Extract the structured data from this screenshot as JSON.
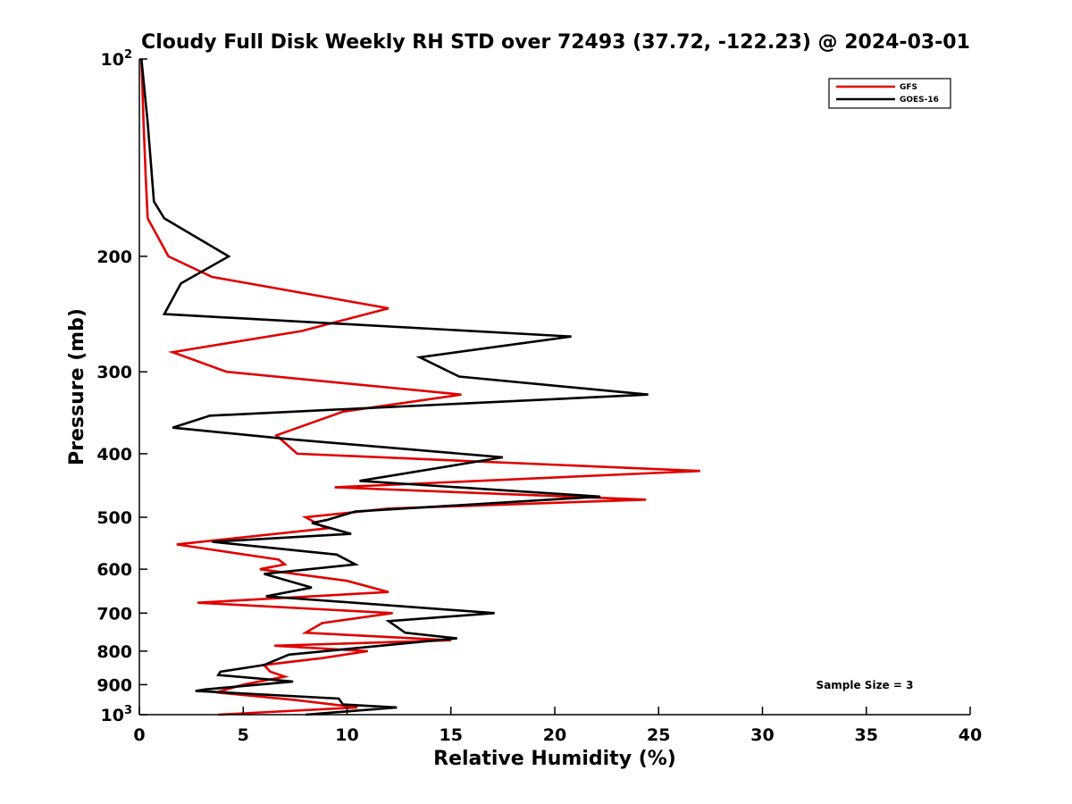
{
  "chart_data": {
    "type": "line",
    "title": "Cloudy Full Disk Weekly RH STD over 72493 (37.72, -122.23) @ 2024-03-01",
    "xlabel": "Relative Humidity (%)",
    "ylabel": "Pressure (mb)",
    "xlim": [
      0,
      40
    ],
    "ylim": [
      100,
      1000
    ],
    "yscale": "log",
    "y_reversed": true,
    "grid": false,
    "legend_position": "top-right",
    "x_ticks": [
      "0",
      "5",
      "10",
      "15",
      "20",
      "25",
      "30",
      "35",
      "40"
    ],
    "y_ticks": [
      {
        "value": 100,
        "base": "10",
        "exp": "2"
      },
      {
        "value": 200,
        "label": "200"
      },
      {
        "value": 300,
        "label": "300"
      },
      {
        "value": 400,
        "label": "400"
      },
      {
        "value": 500,
        "label": "500"
      },
      {
        "value": 600,
        "label": "600"
      },
      {
        "value": 700,
        "label": "700"
      },
      {
        "value": 800,
        "label": "800"
      },
      {
        "value": 900,
        "label": "900"
      },
      {
        "value": 1000,
        "base": "10",
        "exp": "3"
      }
    ],
    "annotation": "Sample Size = 3",
    "series": [
      {
        "name": "GFS",
        "color": "#e00000",
        "points": [
          [
            0.1,
            100
          ],
          [
            0.2,
            125
          ],
          [
            0.3,
            150
          ],
          [
            0.4,
            175
          ],
          [
            1.4,
            200
          ],
          [
            3.5,
            215
          ],
          [
            12.0,
            240
          ],
          [
            7.8,
            260
          ],
          [
            1.6,
            280
          ],
          [
            4.2,
            300
          ],
          [
            15.5,
            325
          ],
          [
            9.8,
            345
          ],
          [
            6.6,
            375
          ],
          [
            7.6,
            400
          ],
          [
            27.0,
            425
          ],
          [
            9.4,
            450
          ],
          [
            24.4,
            470
          ],
          [
            12.0,
            485
          ],
          [
            8.0,
            500
          ],
          [
            9.0,
            520
          ],
          [
            1.8,
            550
          ],
          [
            6.7,
            580
          ],
          [
            7.0,
            590
          ],
          [
            5.8,
            600
          ],
          [
            10.0,
            625
          ],
          [
            12.0,
            650
          ],
          [
            2.8,
            675
          ],
          [
            12.2,
            700
          ],
          [
            8.8,
            725
          ],
          [
            8.0,
            750
          ],
          [
            15.0,
            770
          ],
          [
            6.5,
            785
          ],
          [
            11.0,
            800
          ],
          [
            8.8,
            820
          ],
          [
            6.0,
            840
          ],
          [
            6.3,
            860
          ],
          [
            7.0,
            875
          ],
          [
            5.0,
            900
          ],
          [
            3.7,
            925
          ],
          [
            7.5,
            950
          ],
          [
            10.5,
            975
          ],
          [
            3.8,
            1000
          ]
        ]
      },
      {
        "name": "GOES-16",
        "color": "#000000",
        "points": [
          [
            0.1,
            100
          ],
          [
            0.4,
            125
          ],
          [
            0.6,
            150
          ],
          [
            0.7,
            165
          ],
          [
            1.2,
            175
          ],
          [
            4.3,
            200
          ],
          [
            2.0,
            220
          ],
          [
            1.2,
            245
          ],
          [
            20.8,
            265
          ],
          [
            13.5,
            285
          ],
          [
            15.4,
            305
          ],
          [
            24.5,
            325
          ],
          [
            3.4,
            350
          ],
          [
            1.6,
            365
          ],
          [
            7.2,
            380
          ],
          [
            17.5,
            405
          ],
          [
            10.6,
            440
          ],
          [
            22.2,
            465
          ],
          [
            10.4,
            490
          ],
          [
            9.0,
            505
          ],
          [
            8.3,
            510
          ],
          [
            10.2,
            530
          ],
          [
            3.5,
            545
          ],
          [
            9.5,
            570
          ],
          [
            10.4,
            590
          ],
          [
            6.0,
            610
          ],
          [
            8.3,
            640
          ],
          [
            6.1,
            660
          ],
          [
            17.1,
            700
          ],
          [
            12.0,
            720
          ],
          [
            12.8,
            750
          ],
          [
            15.3,
            765
          ],
          [
            7.2,
            810
          ],
          [
            6.0,
            840
          ],
          [
            3.9,
            860
          ],
          [
            3.8,
            870
          ],
          [
            7.4,
            890
          ],
          [
            3.2,
            915
          ],
          [
            2.7,
            920
          ],
          [
            9.6,
            945
          ],
          [
            9.8,
            965
          ],
          [
            12.4,
            975
          ],
          [
            8.0,
            1000
          ]
        ]
      }
    ]
  }
}
